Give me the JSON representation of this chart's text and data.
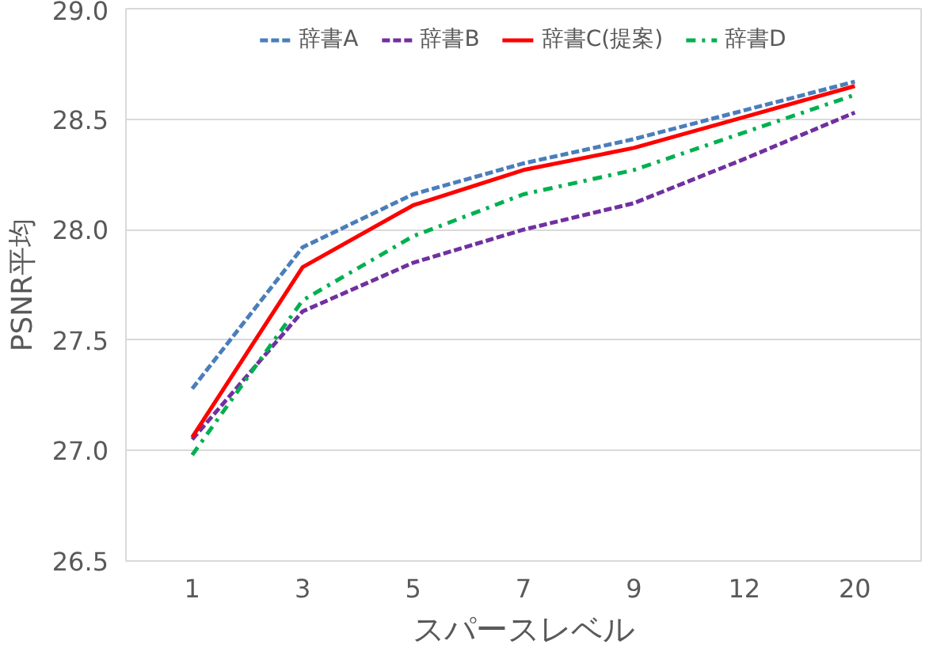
{
  "chart_data": {
    "type": "line",
    "xlabel": "スパースレベル",
    "ylabel": "PSNR平均",
    "categories": [
      "1",
      "3",
      "5",
      "7",
      "9",
      "12",
      "20"
    ],
    "ylim": [
      26.5,
      29.0
    ],
    "yticks": [
      {
        "value": 26.5,
        "label": "26.5"
      },
      {
        "value": 27.0,
        "label": "27.0"
      },
      {
        "value": 27.5,
        "label": "27.5"
      },
      {
        "value": 28.0,
        "label": "28.0"
      },
      {
        "value": 28.5,
        "label": "28.5"
      },
      {
        "value": 29.0,
        "label": "29.0"
      }
    ],
    "grid": "y",
    "legend": "top",
    "series": [
      {
        "name": "辞書A",
        "color": "#4a7ebb",
        "line_style": "dashed",
        "values": [
          27.28,
          27.92,
          28.16,
          28.3,
          28.41,
          28.54,
          28.67
        ]
      },
      {
        "name": "辞書B",
        "color": "#7030a0",
        "line_style": "dashed",
        "values": [
          27.05,
          27.63,
          27.85,
          28.0,
          28.12,
          28.32,
          28.53
        ]
      },
      {
        "name": "辞書C(提案)",
        "color": "#ff0000",
        "line_style": "solid",
        "values": [
          27.06,
          27.83,
          28.11,
          28.27,
          28.37,
          28.51,
          28.65
        ]
      },
      {
        "name": "辞書D",
        "color": "#00b050",
        "line_style": "dashdot",
        "values": [
          26.98,
          27.68,
          27.97,
          28.16,
          28.27,
          28.44,
          28.61
        ]
      }
    ]
  }
}
